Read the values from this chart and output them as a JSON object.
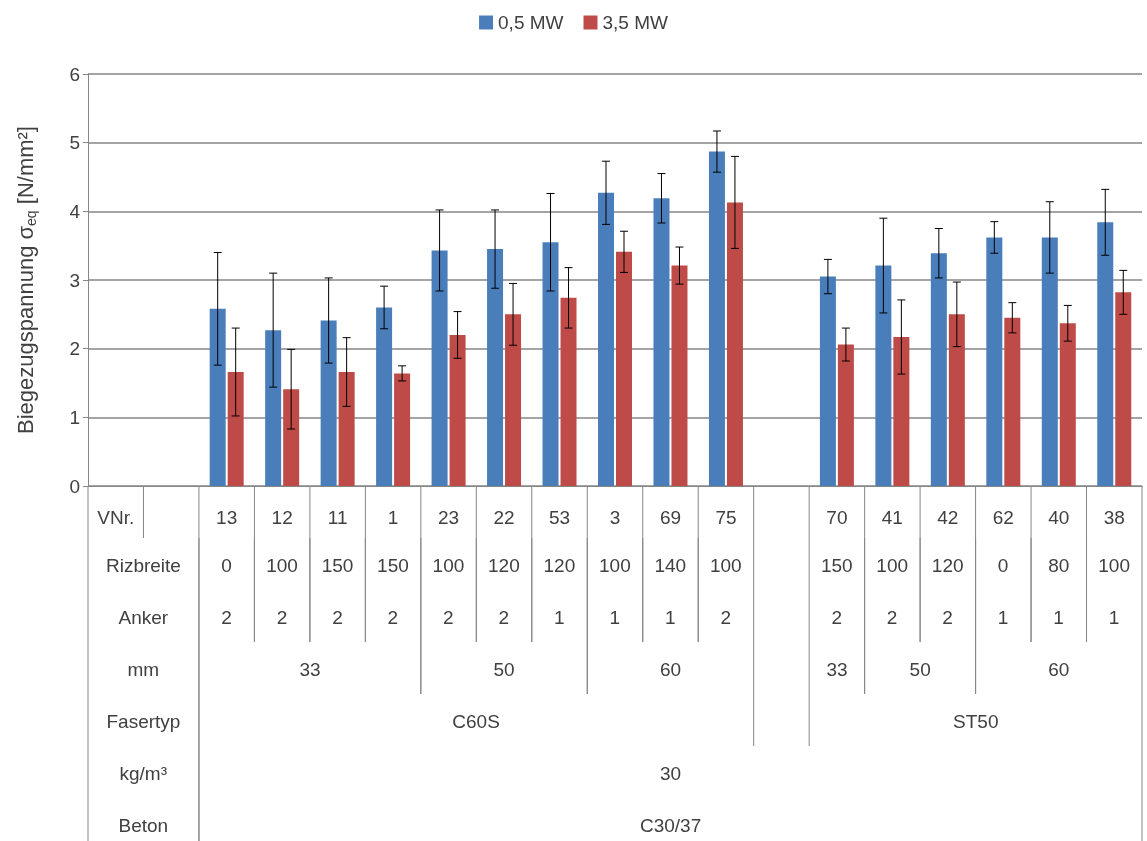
{
  "chart_data": {
    "type": "bar",
    "ylabel": "Biegezugspannung σ$_{eq}$ [N/mm²]",
    "categories": [
      "VNr.",
      null,
      "13",
      "12",
      "11",
      "1",
      "23",
      "22",
      "53",
      "3",
      "69",
      "75",
      null,
      "70",
      "41",
      "42",
      "62",
      "40",
      "38"
    ],
    "series": [
      {
        "name": "0,5 MW",
        "color": "#4a7ebb",
        "values": [
          null,
          null,
          2.58,
          2.27,
          2.41,
          2.6,
          3.43,
          3.45,
          3.55,
          4.27,
          4.19,
          4.87,
          null,
          3.05,
          3.21,
          3.39,
          3.62,
          3.62,
          3.84
        ],
        "errors": [
          null,
          null,
          0.82,
          0.83,
          0.62,
          0.31,
          0.59,
          0.57,
          0.71,
          0.46,
          0.36,
          0.3,
          null,
          0.25,
          0.69,
          0.36,
          0.23,
          0.52,
          0.48
        ]
      },
      {
        "name": "3,5 MW",
        "color": "#be4b48",
        "values": [
          null,
          null,
          1.66,
          1.41,
          1.66,
          1.64,
          2.2,
          2.5,
          2.74,
          3.41,
          3.21,
          4.13,
          null,
          2.06,
          2.17,
          2.5,
          2.45,
          2.37,
          2.82
        ],
        "errors": [
          null,
          null,
          0.64,
          0.58,
          0.5,
          0.11,
          0.34,
          0.45,
          0.44,
          0.3,
          0.27,
          0.67,
          null,
          0.24,
          0.54,
          0.47,
          0.22,
          0.26,
          0.32
        ]
      }
    ],
    "ylim": [
      0,
      6
    ],
    "yticks": [
      0,
      1,
      2,
      3,
      4,
      5,
      6
    ],
    "grid": "y",
    "legend": "top",
    "annotations": [
      "Rizbreite",
      "0",
      "100",
      "150",
      "150",
      "100",
      "120",
      "120",
      "100",
      "140",
      "100",
      "150",
      "100",
      "120",
      "0",
      "80",
      "100",
      "Anker",
      "2",
      "2",
      "2",
      "2",
      "2",
      "2",
      "1",
      "1",
      "1",
      "2",
      "2",
      "2",
      "2",
      "1",
      "1",
      "1",
      "mm",
      "33",
      "50",
      "60",
      "33",
      "50",
      "60",
      "Fasertyp",
      "C60S",
      "ST50",
      "kg/m³",
      "30",
      "Beton",
      "C30/37"
    ]
  }
}
